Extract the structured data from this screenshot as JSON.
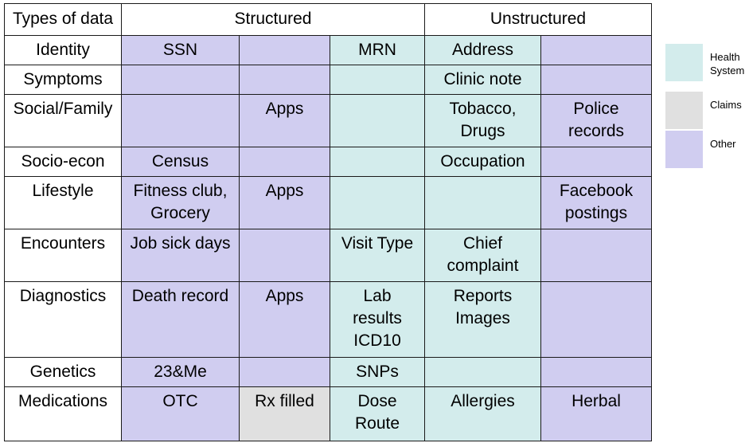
{
  "header": {
    "col1": "Types of data",
    "structured": "Structured",
    "unstructured": "Unstructured"
  },
  "colors": {
    "other": "#d0cdf0",
    "health_system": "#d3ecec",
    "claims": "#e0e0e0",
    "blank": "#ffffff"
  },
  "rows": [
    {
      "label": "Identity",
      "cells": [
        {
          "t": "SSN",
          "c": "o"
        },
        {
          "t": "",
          "c": "o"
        },
        {
          "t": "MRN",
          "c": "h"
        },
        {
          "t": "Address",
          "c": "h"
        },
        {
          "t": "",
          "c": "o"
        }
      ]
    },
    {
      "label": "Symptoms",
      "cells": [
        {
          "t": "",
          "c": "o"
        },
        {
          "t": "",
          "c": "o"
        },
        {
          "t": "",
          "c": "h"
        },
        {
          "t": "Clinic note",
          "c": "h"
        },
        {
          "t": "",
          "c": "o"
        }
      ]
    },
    {
      "label": "Social/Family",
      "cells": [
        {
          "t": "",
          "c": "o"
        },
        {
          "t": "Apps",
          "c": "o"
        },
        {
          "t": "",
          "c": "h"
        },
        {
          "t": "Tobacco,\nDrugs",
          "c": "h"
        },
        {
          "t": "Police\nrecords",
          "c": "o"
        }
      ]
    },
    {
      "label": "Socio-econ",
      "cells": [
        {
          "t": "Census",
          "c": "o"
        },
        {
          "t": "",
          "c": "o"
        },
        {
          "t": "",
          "c": "h"
        },
        {
          "t": "Occupation",
          "c": "h"
        },
        {
          "t": "",
          "c": "o"
        }
      ]
    },
    {
      "label": "Lifestyle",
      "cells": [
        {
          "t": "Fitness club,\nGrocery",
          "c": "o"
        },
        {
          "t": "Apps",
          "c": "o"
        },
        {
          "t": "",
          "c": "h"
        },
        {
          "t": "",
          "c": "h"
        },
        {
          "t": "Facebook\npostings",
          "c": "o"
        }
      ]
    },
    {
      "label": "Encounters",
      "cells": [
        {
          "t": "Job sick days",
          "c": "o"
        },
        {
          "t": "",
          "c": "o"
        },
        {
          "t": "Visit Type",
          "c": "h"
        },
        {
          "t": "Chief\ncomplaint",
          "c": "h"
        },
        {
          "t": "",
          "c": "o"
        }
      ]
    },
    {
      "label": "Diagnostics",
      "cells": [
        {
          "t": "Death record",
          "c": "o"
        },
        {
          "t": "Apps",
          "c": "o"
        },
        {
          "t": "Lab\nresults\nICD10",
          "c": "h"
        },
        {
          "t": "Reports\nImages",
          "c": "h"
        },
        {
          "t": "",
          "c": "o"
        }
      ]
    },
    {
      "label": "Genetics",
      "cells": [
        {
          "t": "23&Me",
          "c": "o"
        },
        {
          "t": "",
          "c": "o"
        },
        {
          "t": "SNPs",
          "c": "h"
        },
        {
          "t": "",
          "c": "h"
        },
        {
          "t": "",
          "c": "o"
        }
      ]
    },
    {
      "label": "Medications",
      "cells": [
        {
          "t": "OTC",
          "c": "o"
        },
        {
          "t": "Rx filled",
          "c": "c"
        },
        {
          "t": "Dose\nRoute",
          "c": "h"
        },
        {
          "t": "Allergies",
          "c": "h"
        },
        {
          "t": "Herbal",
          "c": "o"
        }
      ]
    }
  ],
  "legend": [
    {
      "label": "Health\nSystem",
      "c": "h"
    },
    {
      "label": "Claims",
      "c": "c"
    },
    {
      "label": "Other",
      "c": "o"
    }
  ]
}
